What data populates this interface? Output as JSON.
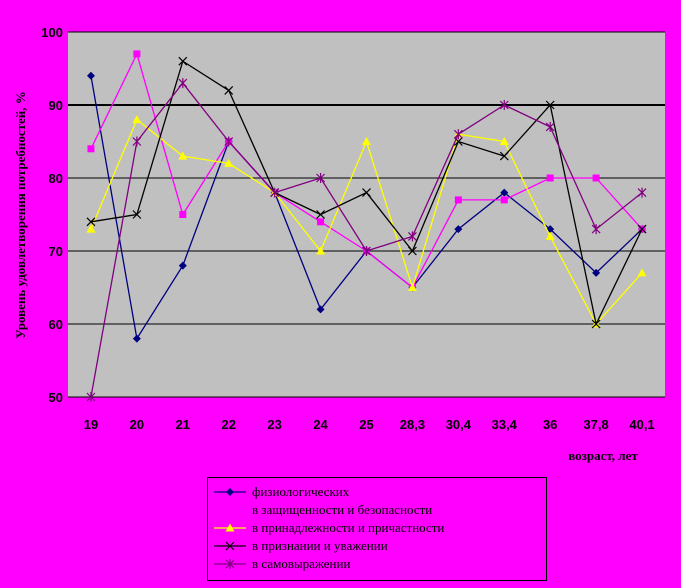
{
  "chart_data": {
    "type": "line",
    "categories": [
      "19",
      "20",
      "21",
      "22",
      "23",
      "24",
      "25",
      "28,3",
      "30,4",
      "33,4",
      "36",
      "37,8",
      "40,1"
    ],
    "ylabel": "Уровень удовлетворения потребностей, %",
    "xlabel": "возраст, лет",
    "ylim": [
      50,
      100
    ],
    "y_ticks": [
      "50",
      "60",
      "70",
      "80",
      "90",
      "100"
    ],
    "grid": "horizontal",
    "legend_position": "bottom",
    "plot_background": "#c0c0c0",
    "series": [
      {
        "name": "физиологических",
        "color": "#000080",
        "marker": "diamond",
        "values": [
          94,
          58,
          68,
          85,
          78,
          62,
          70,
          65,
          73,
          78,
          73,
          67,
          73
        ]
      },
      {
        "name": "в защищенности и безопасности",
        "color": "#ff00ff",
        "marker": "square",
        "values": [
          84,
          97,
          75,
          85,
          78,
          74,
          70,
          65,
          77,
          77,
          80,
          80,
          73
        ]
      },
      {
        "name": "в принадлежности и причастности",
        "color": "#ffff00",
        "marker": "triangle",
        "values": [
          73,
          88,
          83,
          82,
          78,
          70,
          85,
          65,
          86,
          85,
          72,
          60,
          67
        ]
      },
      {
        "name": "в признании и уважении",
        "color": "#000000",
        "marker": "x",
        "values": [
          74,
          75,
          96,
          92,
          78,
          75,
          78,
          70,
          85,
          83,
          90,
          60,
          73
        ]
      },
      {
        "name": "в самовыражении",
        "color": "#800080",
        "marker": "star",
        "values": [
          50,
          85,
          93,
          85,
          78,
          80,
          70,
          72,
          86,
          90,
          87,
          73,
          78
        ]
      }
    ]
  }
}
